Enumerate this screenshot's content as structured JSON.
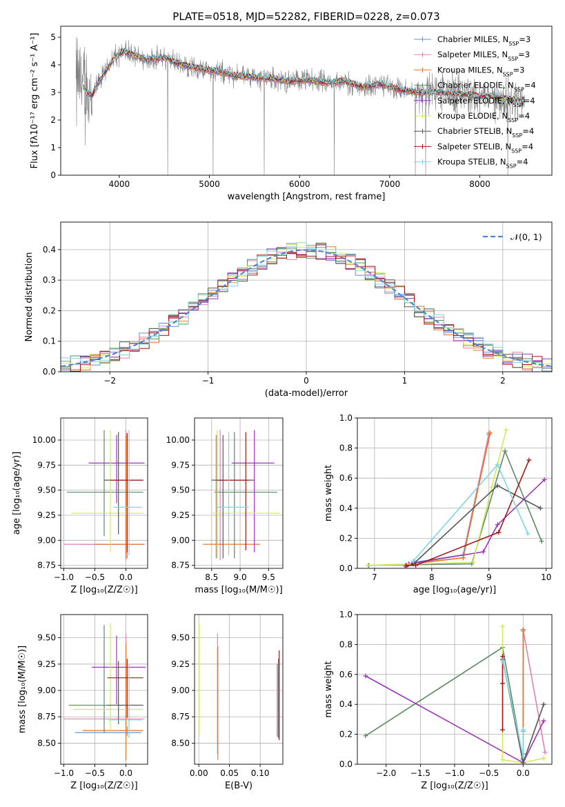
{
  "title": "PLATE=0518, MJD=52282, FIBERID=0228, z=0.073",
  "colors": {
    "Chabrier MILES": "#6a8fcf",
    "Salpeter MILES": "#e080b0",
    "Kroupa MILES": "#e8742c",
    "Chabrier ELODIE": "#5a8a62",
    "Salpeter ELODIE": "#9a35b5",
    "Kroupa ELODIE": "#d2ea5a",
    "Chabrier STELIB": "#555555",
    "Salpeter STELIB": "#a81414",
    "Kroupa STELIB": "#7ed6e0",
    "data": "#808080",
    "gaussian": "#4d86d1"
  },
  "chart_data": [
    {
      "type": "line",
      "panel": "spectrum",
      "title": "PLATE=0518, MJD=52282, FIBERID=0228, z=0.073",
      "xlabel": "wavelength [Angstrom, rest frame]",
      "ylabel": "Flux [f_λ 10^-17 erg cm^-2 s^-1 A^-1]",
      "xlim": [
        3350,
        8800
      ],
      "ylim": [
        0,
        5.4
      ],
      "xticks": [
        4000,
        5000,
        6000,
        7000,
        8000
      ],
      "yticks": [
        0,
        1,
        2,
        3,
        4,
        5
      ],
      "continuum": {
        "x": [
          3520,
          3560,
          3640,
          3700,
          3760,
          3850,
          3950,
          4050,
          4150,
          4300,
          4500,
          4700,
          4900,
          5100,
          5300,
          5500,
          5700,
          5900,
          6100,
          6300,
          6500,
          6700,
          6900,
          7100,
          7300,
          7500,
          7700,
          7900,
          8100,
          8300,
          8500
        ],
        "y": [
          3.25,
          3.4,
          3.0,
          2.9,
          3.3,
          3.75,
          4.3,
          4.5,
          4.35,
          4.2,
          4.25,
          4.0,
          3.85,
          3.75,
          3.6,
          3.55,
          3.5,
          3.4,
          3.45,
          3.35,
          3.4,
          3.2,
          3.3,
          3.1,
          3.0,
          3.0,
          2.95,
          2.9,
          2.85,
          2.75,
          2.7
        ]
      },
      "legend": [
        "Chabrier MILES, N_SSP=3",
        "Salpeter MILES, N_SSP=3",
        "Kroupa MILES, N_SSP=3",
        "Chabrier ELODIE, N_SSP=4",
        "Salpeter ELODIE, N_SSP=4",
        "Kroupa ELODIE, N_SSP=4",
        "Chabrier STELIB, N_SSP=4",
        "Salpeter STELIB, N_SSP=4",
        "Kroupa STELIB, N_SSP=4"
      ],
      "legend_placement": "right"
    },
    {
      "type": "line",
      "panel": "histogram",
      "xlabel": "(data-model)/error",
      "ylabel": "Normed distribution",
      "xlim": [
        -2.5,
        2.5
      ],
      "ylim": [
        0,
        0.49
      ],
      "xticks": [
        -2,
        -1,
        0,
        1,
        2
      ],
      "yticks": [
        0.0,
        0.1,
        0.2,
        0.3,
        0.4
      ],
      "bin_width": 0.1,
      "gaussian_label": "𝒩(0, 1)",
      "grid": true
    },
    {
      "type": "scatter",
      "panel": "age-vs-Z",
      "xlabel": "Z [log10(Z/Z☉)]",
      "ylabel": "age [log10(age/yr)]",
      "xlim": [
        -1.05,
        0.35
      ],
      "ylim": [
        8.72,
        10.22
      ],
      "xticks": [
        -1.0,
        -0.5,
        0.0
      ],
      "yticks": [
        8.75,
        9.0,
        9.25,
        9.5,
        9.75,
        10.0
      ],
      "grid": true
    },
    {
      "type": "scatter",
      "panel": "age-vs-mass",
      "xlabel": "mass [log10(M/M☉)]",
      "ylabel": "",
      "xlim": [
        8.2,
        9.75
      ],
      "ylim": [
        8.72,
        10.22
      ],
      "xticks": [
        8.5,
        9.0,
        9.5
      ],
      "yticks": [
        8.75,
        9.0,
        9.25,
        9.5,
        9.75,
        10.0
      ],
      "grid": true
    },
    {
      "type": "line",
      "panel": "weight-vs-age",
      "xlabel": "age [log10(age/yr)]",
      "ylabel": "mass weight",
      "xlim": [
        6.7,
        10.1
      ],
      "ylim": [
        0,
        1
      ],
      "xticks": [
        7,
        8,
        9,
        10
      ],
      "yticks": [
        0.0,
        0.2,
        0.4,
        0.6,
        0.8,
        1.0
      ],
      "grid": true,
      "series": [
        {
          "color": "#6a8fcf",
          "x": [
            7.7,
            8.55,
            9.0
          ],
          "y": [
            0.04,
            0.09,
            0.89
          ]
        },
        {
          "color": "#e080b0",
          "x": [
            7.65,
            8.55,
            9.0
          ],
          "y": [
            0.03,
            0.07,
            0.9
          ]
        },
        {
          "color": "#e8742c",
          "x": [
            7.6,
            8.55,
            9.02
          ],
          "y": [
            0.03,
            0.07,
            0.9
          ]
        },
        {
          "color": "#5a8a62",
          "x": [
            6.9,
            8.7,
            9.28,
            9.92
          ],
          "y": [
            0.02,
            0.03,
            0.78,
            0.18
          ]
        },
        {
          "color": "#9a35b5",
          "x": [
            7.6,
            8.9,
            9.15,
            9.97
          ],
          "y": [
            0.03,
            0.11,
            0.29,
            0.59
          ]
        },
        {
          "color": "#d2ea5a",
          "x": [
            6.88,
            8.72,
            9.05,
            9.3
          ],
          "y": [
            0.02,
            0.04,
            0.54,
            0.92
          ]
        },
        {
          "color": "#555555",
          "x": [
            7.55,
            7.68,
            9.15,
            9.9
          ],
          "y": [
            0.01,
            0.03,
            0.55,
            0.4
          ]
        },
        {
          "color": "#a81414",
          "x": [
            7.55,
            7.72,
            9.17,
            9.7
          ],
          "y": [
            0.02,
            0.02,
            0.24,
            0.72
          ]
        },
        {
          "color": "#7ed6e0",
          "x": [
            7.68,
            9.15,
            9.68
          ],
          "y": [
            0.05,
            0.69,
            0.23
          ]
        }
      ]
    },
    {
      "type": "scatter",
      "panel": "mass-vs-Z",
      "xlabel": "Z [log10(Z/Z☉)]",
      "ylabel": "mass [log10(M/M☉)]",
      "xlim": [
        -1.05,
        0.35
      ],
      "ylim": [
        8.3,
        9.72
      ],
      "xticks": [
        -1.0,
        -0.5,
        0.0
      ],
      "yticks": [
        8.5,
        8.75,
        9.0,
        9.25,
        9.5
      ],
      "grid": true
    },
    {
      "type": "scatter",
      "panel": "mass-vs-ebv",
      "xlabel": "E(B-V)",
      "ylabel": "",
      "xlim": [
        -0.007,
        0.137
      ],
      "ylim": [
        8.3,
        9.72
      ],
      "xticks": [
        0.0,
        0.05,
        0.1
      ],
      "yticks": [
        8.5,
        8.75,
        9.0,
        9.25,
        9.5
      ],
      "grid": true
    },
    {
      "type": "line",
      "panel": "weight-vs-Z",
      "xlabel": "Z [log10(Z/Z☉)]",
      "ylabel": "mass weight",
      "xlim": [
        -2.42,
        0.42
      ],
      "ylim": [
        0,
        1
      ],
      "xticks": [
        -2.0,
        -1.5,
        -1.0,
        -0.5,
        0.0
      ],
      "yticks": [
        0.0,
        0.2,
        0.4,
        0.6,
        0.8,
        1.0
      ],
      "grid": true,
      "series": [
        {
          "color": "#6a8fcf",
          "x": [
            0.0,
            0.0,
            0.0
          ],
          "y": [
            0.05,
            0.22,
            0.89
          ]
        },
        {
          "color": "#e080b0",
          "x": [
            0.0,
            0.0,
            0.32
          ],
          "y": [
            0.03,
            0.9,
            0.08
          ]
        },
        {
          "color": "#e8742c",
          "x": [
            0.0,
            0.0,
            0.0
          ],
          "y": [
            0.04,
            0.07,
            0.9
          ]
        },
        {
          "color": "#5a8a62",
          "x": [
            -2.3,
            -0.3,
            0.0
          ],
          "y": [
            0.19,
            0.78,
            0.03
          ]
        },
        {
          "color": "#9a35b5",
          "x": [
            -2.3,
            0.0,
            0.3
          ],
          "y": [
            0.59,
            0.01,
            0.29
          ]
        },
        {
          "color": "#d2ea5a",
          "x": [
            -0.3,
            -0.3,
            0.0,
            0.3
          ],
          "y": [
            0.92,
            0.03,
            0.01,
            0.04
          ]
        },
        {
          "color": "#555555",
          "x": [
            -0.3,
            0.0,
            0.3
          ],
          "y": [
            0.7,
            0.01,
            0.4
          ]
        },
        {
          "color": "#a81414",
          "x": [
            -0.3,
            -0.3,
            -0.3
          ],
          "y": [
            0.23,
            0.54,
            0.72
          ]
        },
        {
          "color": "#7ed6e0",
          "x": [
            -0.3,
            0.0,
            0.0
          ],
          "y": [
            0.69,
            0.05,
            0.23
          ]
        }
      ]
    }
  ],
  "errorbars": {
    "age_vs_Z": [
      {
        "c": "#6a8fcf",
        "x": 0.02,
        "y": 8.96,
        "xl": -0.75,
        "xh": 0.18,
        "yl": 8.82,
        "yh": 10.05
      },
      {
        "c": "#e080b0",
        "x": 0.0,
        "y": 8.96,
        "xl": -1.0,
        "xh": 0.3,
        "yl": 8.8,
        "yh": 10.1
      },
      {
        "c": "#e8742c",
        "x": 0.0,
        "y": 8.96,
        "xl": -0.5,
        "xh": 0.3,
        "yl": 8.82,
        "yh": 10.05
      },
      {
        "c": "#5a8a62",
        "x": -0.35,
        "y": 9.48,
        "xl": -0.95,
        "xh": 0.28,
        "yl": 9.04,
        "yh": 10.1
      },
      {
        "c": "#9a35b5",
        "x": -0.15,
        "y": 9.77,
        "xl": -0.6,
        "xh": 0.3,
        "yl": 9.37,
        "yh": 10.05
      },
      {
        "c": "#d2ea5a",
        "x": -0.25,
        "y": 9.27,
        "xl": -0.88,
        "xh": 0.28,
        "yl": 8.88,
        "yh": 10.1
      },
      {
        "c": "#555555",
        "x": -0.12,
        "y": 9.6,
        "xl": -0.35,
        "xh": 0.28,
        "yl": 9.06,
        "yh": 10.08
      },
      {
        "c": "#a81414",
        "x": 0.02,
        "y": 9.6,
        "xl": -0.25,
        "xh": 0.28,
        "yl": 8.88,
        "yh": 10.07
      },
      {
        "c": "#7ed6e0",
        "x": 0.05,
        "y": 9.33,
        "xl": -0.2,
        "xh": 0.25,
        "yl": 8.85,
        "yh": 10.1
      }
    ],
    "age_vs_mass": [
      {
        "c": "#6a8fcf",
        "x": 8.6,
        "y": 8.96,
        "xl": 8.55,
        "xh": 8.65,
        "yl": 8.82,
        "yh": 10.05
      },
      {
        "c": "#e080b0",
        "x": 8.65,
        "y": 8.96,
        "xl": 8.6,
        "xh": 8.7,
        "yl": 8.8,
        "yh": 10.1
      },
      {
        "c": "#e8742c",
        "x": 8.58,
        "y": 8.96,
        "xl": 8.35,
        "xh": 9.35,
        "yl": 8.82,
        "yh": 10.05
      },
      {
        "c": "#5a8a62",
        "x": 8.9,
        "y": 9.48,
        "xl": 8.55,
        "xh": 9.65,
        "yl": 8.82,
        "yh": 10.08
      },
      {
        "c": "#9a35b5",
        "x": 9.25,
        "y": 9.77,
        "xl": 8.85,
        "xh": 9.6,
        "yl": 8.88,
        "yh": 10.1
      },
      {
        "c": "#d2ea5a",
        "x": 8.6,
        "y": 9.27,
        "xl": 8.5,
        "xh": 9.7,
        "yl": 8.82,
        "yh": 10.1
      },
      {
        "c": "#555555",
        "x": 8.7,
        "y": 9.6,
        "xl": 8.5,
        "xh": 9.25,
        "yl": 8.82,
        "yh": 10.05
      },
      {
        "c": "#a81414",
        "x": 9.1,
        "y": 9.6,
        "xl": 8.6,
        "xh": 9.15,
        "yl": 8.9,
        "yh": 10.08
      },
      {
        "c": "#7ed6e0",
        "x": 8.8,
        "y": 9.33,
        "xl": 8.6,
        "xh": 9.15,
        "yl": 8.85,
        "yh": 10.08
      }
    ],
    "mass_vs_Z": [
      {
        "c": "#6a8fcf",
        "x": 0.02,
        "y": 8.6,
        "xl": -0.82,
        "xh": 0.25,
        "yl": 8.57,
        "yh": 8.66
      },
      {
        "c": "#e080b0",
        "x": 0.0,
        "y": 8.73,
        "xl": -1.0,
        "xh": 0.3,
        "yl": 8.66,
        "yh": 9.54
      },
      {
        "c": "#e8742c",
        "x": 0.0,
        "y": 8.62,
        "xl": -0.7,
        "xh": 0.28,
        "yl": 8.34,
        "yh": 9.45
      },
      {
        "c": "#5a8a62",
        "x": -0.35,
        "y": 8.86,
        "xl": -0.92,
        "xh": 0.28,
        "yl": 8.6,
        "yh": 9.62
      },
      {
        "c": "#9a35b5",
        "x": -0.15,
        "y": 9.22,
        "xl": -0.55,
        "xh": 0.32,
        "yl": 8.87,
        "yh": 9.52
      },
      {
        "c": "#d2ea5a",
        "x": -0.25,
        "y": 8.82,
        "xl": -0.85,
        "xh": 0.28,
        "yl": 8.6,
        "yh": 9.64
      },
      {
        "c": "#555555",
        "x": -0.12,
        "y": 8.86,
        "xl": -0.3,
        "xh": 0.28,
        "yl": 8.68,
        "yh": 9.28
      },
      {
        "c": "#a81414",
        "x": 0.02,
        "y": 9.12,
        "xl": -0.3,
        "xh": 0.28,
        "yl": 8.74,
        "yh": 9.3
      },
      {
        "c": "#7ed6e0",
        "x": 0.05,
        "y": 8.72,
        "xl": -0.28,
        "xh": 0.25,
        "yl": 8.55,
        "yh": 9.25
      }
    ],
    "mass_vs_ebv": [
      {
        "c": "#6a8fcf",
        "x": 0.0305,
        "yl": 8.4,
        "yh": 9.4
      },
      {
        "c": "#e080b0",
        "x": 0.0305,
        "yl": 8.5,
        "yh": 9.54
      },
      {
        "c": "#e8742c",
        "x": 0.031,
        "yl": 8.34,
        "yh": 9.42
      },
      {
        "c": "#5a8a62",
        "x": 0.128,
        "yl": 8.56,
        "yh": 9.25
      },
      {
        "c": "#9a35b5",
        "x": 0.129,
        "yl": 8.6,
        "yh": 9.22
      },
      {
        "c": "#d2ea5a",
        "x": 0.0005,
        "yl": 8.58,
        "yh": 9.64
      },
      {
        "c": "#555555",
        "x": 0.13,
        "yl": 8.55,
        "yh": 9.3
      },
      {
        "c": "#a81414",
        "x": 0.131,
        "yl": 8.53,
        "yh": 9.38
      },
      {
        "c": "#7ed6e0",
        "x": 0.129,
        "yl": 8.55,
        "yh": 9.26
      }
    ]
  }
}
